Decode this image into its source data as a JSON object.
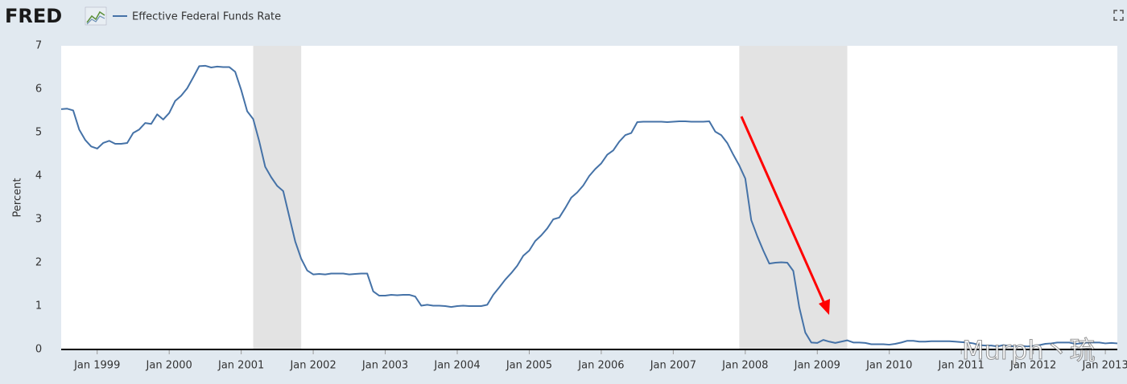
{
  "header": {
    "logo": "FRED"
  },
  "chart_data": {
    "type": "line",
    "y_label": "Percent",
    "watermark": "Murph丶琉",
    "x": [
      "1998-07",
      "1998-08",
      "1998-09",
      "1998-10",
      "1998-11",
      "1998-12",
      "1999-01",
      "1999-02",
      "1999-03",
      "1999-04",
      "1999-05",
      "1999-06",
      "1999-07",
      "1999-08",
      "1999-09",
      "1999-10",
      "1999-11",
      "1999-12",
      "2000-01",
      "2000-02",
      "2000-03",
      "2000-04",
      "2000-05",
      "2000-06",
      "2000-07",
      "2000-08",
      "2000-09",
      "2000-10",
      "2000-11",
      "2000-12",
      "2001-01",
      "2001-02",
      "2001-03",
      "2001-04",
      "2001-05",
      "2001-06",
      "2001-07",
      "2001-08",
      "2001-09",
      "2001-10",
      "2001-11",
      "2001-12",
      "2002-01",
      "2002-02",
      "2002-03",
      "2002-04",
      "2002-05",
      "2002-06",
      "2002-07",
      "2002-08",
      "2002-09",
      "2002-10",
      "2002-11",
      "2002-12",
      "2003-01",
      "2003-02",
      "2003-03",
      "2003-04",
      "2003-05",
      "2003-06",
      "2003-07",
      "2003-08",
      "2003-09",
      "2003-10",
      "2003-11",
      "2003-12",
      "2004-01",
      "2004-02",
      "2004-03",
      "2004-04",
      "2004-05",
      "2004-06",
      "2004-07",
      "2004-08",
      "2004-09",
      "2004-10",
      "2004-11",
      "2004-12",
      "2005-01",
      "2005-02",
      "2005-03",
      "2005-04",
      "2005-05",
      "2005-06",
      "2005-07",
      "2005-08",
      "2005-09",
      "2005-10",
      "2005-11",
      "2005-12",
      "2006-01",
      "2006-02",
      "2006-03",
      "2006-04",
      "2006-05",
      "2006-06",
      "2006-07",
      "2006-08",
      "2006-09",
      "2006-10",
      "2006-11",
      "2006-12",
      "2007-01",
      "2007-02",
      "2007-03",
      "2007-04",
      "2007-05",
      "2007-06",
      "2007-07",
      "2007-08",
      "2007-09",
      "2007-10",
      "2007-11",
      "2007-12",
      "2008-01",
      "2008-02",
      "2008-03",
      "2008-04",
      "2008-05",
      "2008-06",
      "2008-07",
      "2008-08",
      "2008-09",
      "2008-10",
      "2008-11",
      "2008-12",
      "2009-01",
      "2009-02",
      "2009-03",
      "2009-04",
      "2009-05",
      "2009-06",
      "2009-07",
      "2009-08",
      "2009-09",
      "2009-10",
      "2009-11",
      "2009-12",
      "2010-01",
      "2010-02",
      "2010-03",
      "2010-04",
      "2010-05",
      "2010-06",
      "2010-07",
      "2010-08",
      "2010-09",
      "2010-10",
      "2010-11",
      "2010-12",
      "2011-01",
      "2011-02",
      "2011-03",
      "2011-04",
      "2011-05",
      "2011-06",
      "2011-07",
      "2011-08",
      "2011-09",
      "2011-10",
      "2011-11",
      "2011-12",
      "2012-01",
      "2012-02",
      "2012-03",
      "2012-04",
      "2012-05",
      "2012-06",
      "2012-07",
      "2012-08",
      "2012-09",
      "2012-10",
      "2012-11",
      "2012-12",
      "2013-01",
      "2013-02",
      "2013-03"
    ],
    "series": [
      {
        "name": "Effective Federal Funds Rate",
        "color": "#4572a7",
        "values": [
          5.54,
          5.55,
          5.51,
          5.07,
          4.83,
          4.68,
          4.63,
          4.76,
          4.81,
          4.74,
          4.74,
          4.76,
          4.99,
          5.07,
          5.22,
          5.2,
          5.42,
          5.3,
          5.45,
          5.73,
          5.85,
          6.02,
          6.27,
          6.53,
          6.54,
          6.5,
          6.52,
          6.51,
          6.51,
          6.4,
          5.98,
          5.49,
          5.31,
          4.8,
          4.21,
          3.97,
          3.77,
          3.65,
          3.07,
          2.49,
          2.09,
          1.82,
          1.73,
          1.74,
          1.73,
          1.75,
          1.75,
          1.75,
          1.73,
          1.74,
          1.75,
          1.75,
          1.34,
          1.24,
          1.24,
          1.26,
          1.25,
          1.26,
          1.26,
          1.22,
          1.01,
          1.03,
          1.01,
          1.01,
          1.0,
          0.98,
          1.0,
          1.01,
          1.0,
          1.0,
          1.0,
          1.03,
          1.26,
          1.43,
          1.61,
          1.76,
          1.93,
          2.16,
          2.28,
          2.5,
          2.63,
          2.79,
          3.0,
          3.04,
          3.26,
          3.5,
          3.62,
          3.78,
          4.0,
          4.16,
          4.29,
          4.49,
          4.59,
          4.79,
          4.94,
          4.99,
          5.24,
          5.25,
          5.25,
          5.25,
          5.25,
          5.24,
          5.25,
          5.26,
          5.26,
          5.25,
          5.25,
          5.25,
          5.26,
          5.02,
          4.94,
          4.76,
          4.49,
          4.24,
          3.94,
          2.98,
          2.61,
          2.28,
          1.98,
          2.0,
          2.01,
          2.0,
          1.81,
          0.97,
          0.39,
          0.16,
          0.15,
          0.22,
          0.18,
          0.15,
          0.18,
          0.21,
          0.16,
          0.16,
          0.15,
          0.12,
          0.12,
          0.12,
          0.11,
          0.13,
          0.16,
          0.2,
          0.2,
          0.18,
          0.18,
          0.19,
          0.19,
          0.19,
          0.19,
          0.18,
          0.17,
          0.16,
          0.14,
          0.1,
          0.09,
          0.09,
          0.07,
          0.1,
          0.08,
          0.07,
          0.08,
          0.07,
          0.08,
          0.1,
          0.13,
          0.14,
          0.16,
          0.16,
          0.16,
          0.13,
          0.14,
          0.16,
          0.16,
          0.16,
          0.14,
          0.15,
          0.14
        ]
      }
    ],
    "recessions": [
      [
        "2001-03",
        "2001-11"
      ],
      [
        "2007-12",
        "2009-06"
      ]
    ],
    "recession_color": "#e3e3e3",
    "xlim": [
      "1998-07",
      "2013-03"
    ],
    "xticks": [
      {
        "value": "1999-01",
        "label": "Jan 1999"
      },
      {
        "value": "2000-01",
        "label": "Jan 2000"
      },
      {
        "value": "2001-01",
        "label": "Jan 2001"
      },
      {
        "value": "2002-01",
        "label": "Jan 2002"
      },
      {
        "value": "2003-01",
        "label": "Jan 2003"
      },
      {
        "value": "2004-01",
        "label": "Jan 2004"
      },
      {
        "value": "2005-01",
        "label": "Jan 2005"
      },
      {
        "value": "2006-01",
        "label": "Jan 2006"
      },
      {
        "value": "2007-01",
        "label": "Jan 2007"
      },
      {
        "value": "2008-01",
        "label": "Jan 2008"
      },
      {
        "value": "2009-01",
        "label": "Jan 2009"
      },
      {
        "value": "2010-01",
        "label": "Jan 2010"
      },
      {
        "value": "2011-01",
        "label": "Jan 2011"
      },
      {
        "value": "2012-01",
        "label": "Jan 2012"
      },
      {
        "value": "2013-01",
        "label": "Jan 2013"
      }
    ],
    "ylim": [
      0,
      7
    ],
    "yticks": [
      0,
      1,
      2,
      3,
      4,
      5,
      6,
      7
    ],
    "grid": false
  }
}
